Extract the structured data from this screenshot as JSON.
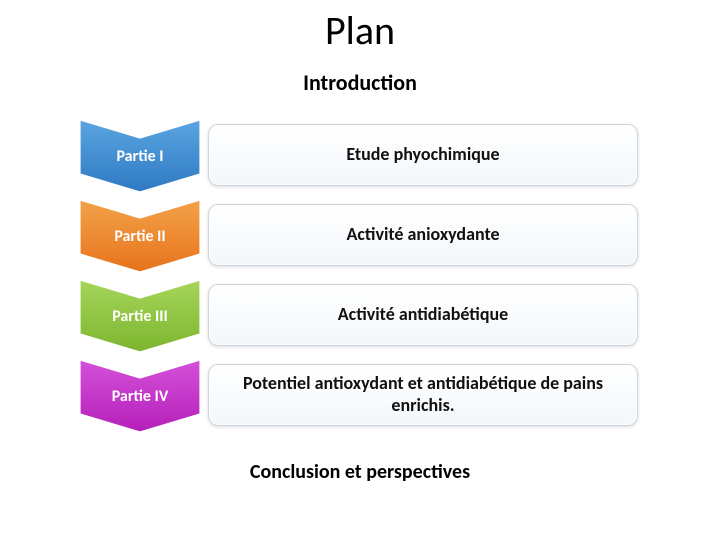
{
  "title": "Plan",
  "intro": "Introduction",
  "conclusion": "Conclusion et perspectives",
  "chevron_geometry": {
    "width": 120,
    "height": 72,
    "notch_depth": 18,
    "stroke": "#ffffff",
    "stroke_width": 1.2
  },
  "capsule_style": {
    "background_top": "#ffffff",
    "background_bottom": "#f3f7fb",
    "border_color": "#cdd7e1",
    "border_radius": 10,
    "font_size": 18
  },
  "rows": [
    {
      "label": "Partie I",
      "content": "Etude phyochimique",
      "fill_top": "#5aa5e0",
      "fill_bottom": "#2f79c3"
    },
    {
      "label": "Partie II",
      "content": "Activité anioxydante",
      "fill_top": "#f3a24a",
      "fill_bottom": "#e7731b"
    },
    {
      "label": "Partie III",
      "content": "Activité antidiabétique",
      "fill_top": "#a6d65b",
      "fill_bottom": "#7cb52f"
    },
    {
      "label": "Partie IV",
      "content": "Potentiel antioxydant et antidiabétique de pains enrichis.",
      "fill_top": "#d451d9",
      "fill_bottom": "#b51fba"
    }
  ],
  "fonts": {
    "title_size": 40,
    "intro_size": 22,
    "chevron_label_size": 16,
    "conclusion_size": 20
  },
  "background_color": "#ffffff"
}
